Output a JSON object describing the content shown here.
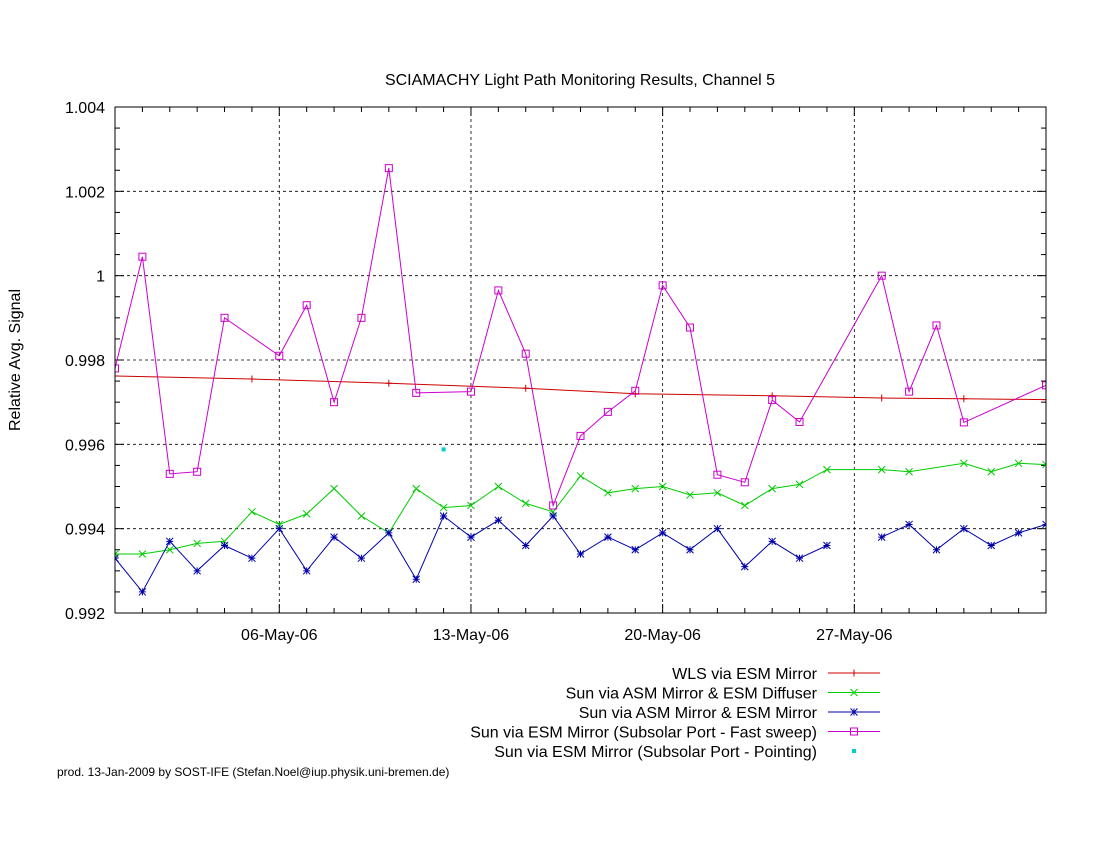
{
  "chart_data": {
    "type": "line",
    "title": "SCIAMACHY Light Path Monitoring Results, Channel 5",
    "xlabel": "",
    "ylabel": "Relative Avg. Signal",
    "x_type": "date",
    "xlim": [
      "2006-04-30",
      "2006-06-03"
    ],
    "ylim": [
      0.992,
      1.004
    ],
    "yticks": [
      0.992,
      0.994,
      0.996,
      0.998,
      1,
      1.002,
      1.004
    ],
    "ytick_labels": [
      "0.992",
      "0.994",
      "0.996",
      "0.998",
      "1",
      "1.002",
      "1.004"
    ],
    "xticks": [
      "2006-05-06",
      "2006-05-13",
      "2006-05-20",
      "2006-05-27"
    ],
    "xtick_labels": [
      "06-May-06",
      "13-May-06",
      "20-May-06",
      "27-May-06"
    ],
    "grid": true,
    "legend_position": "bottom",
    "series": [
      {
        "name": "WLS via ESM Mirror",
        "color": "#cc0000",
        "marker": "plus",
        "points": [
          [
            "2006-04-30",
            0.99762
          ],
          [
            "2006-05-05",
            0.99755
          ],
          [
            "2006-05-10",
            0.99745
          ],
          [
            "2006-05-15",
            0.99733
          ],
          [
            "2006-05-19",
            0.9972
          ],
          [
            "2006-05-24",
            0.99715
          ],
          [
            "2006-05-28",
            0.9971
          ],
          [
            "2006-05-31",
            0.99708
          ],
          [
            "2006-06-03",
            0.99706
          ]
        ]
      },
      {
        "name": "Sun via ASM Mirror & ESM Diffuser",
        "color": "#00cc00",
        "marker": "cross",
        "points": [
          [
            "2006-04-30",
            0.9934
          ],
          [
            "2006-05-01",
            0.9934
          ],
          [
            "2006-05-02",
            0.9935
          ],
          [
            "2006-05-03",
            0.99365
          ],
          [
            "2006-05-04",
            0.9937
          ],
          [
            "2006-05-05",
            0.9944
          ],
          [
            "2006-05-06",
            0.9941
          ],
          [
            "2006-05-07",
            0.99435
          ],
          [
            "2006-05-08",
            0.99495
          ],
          [
            "2006-05-09",
            0.9943
          ],
          [
            "2006-05-10",
            0.9939
          ],
          [
            "2006-05-11",
            0.99495
          ],
          [
            "2006-05-12",
            0.9945
          ],
          [
            "2006-05-13",
            0.99455
          ],
          [
            "2006-05-14",
            0.995
          ],
          [
            "2006-05-15",
            0.9946
          ],
          [
            "2006-05-16",
            0.9944
          ],
          [
            "2006-05-17",
            0.99525
          ],
          [
            "2006-05-18",
            0.99485
          ],
          [
            "2006-05-19",
            0.99495
          ],
          [
            "2006-05-20",
            0.995
          ],
          [
            "2006-05-21",
            0.9948
          ],
          [
            "2006-05-22",
            0.99485
          ],
          [
            "2006-05-23",
            0.99455
          ],
          [
            "2006-05-24",
            0.99495
          ],
          [
            "2006-05-25",
            0.99505
          ],
          [
            "2006-05-26",
            0.9954
          ],
          [
            "2006-05-28",
            0.9954
          ],
          [
            "2006-05-29",
            0.99535
          ],
          [
            "2006-05-31",
            0.99555
          ],
          [
            "2006-06-01",
            0.99535
          ],
          [
            "2006-06-02",
            0.99555
          ],
          [
            "2006-06-03",
            0.99552
          ]
        ]
      },
      {
        "name": "Sun via ASM Mirror & ESM Mirror",
        "color": "#0000aa",
        "marker": "star",
        "segments": [
          [
            [
              "2006-04-30",
              0.9933
            ],
            [
              "2006-05-01",
              0.9925
            ],
            [
              "2006-05-02",
              0.9937
            ],
            [
              "2006-05-03",
              0.993
            ],
            [
              "2006-05-04",
              0.9936
            ],
            [
              "2006-05-05",
              0.9933
            ],
            [
              "2006-05-06",
              0.994
            ],
            [
              "2006-05-07",
              0.993
            ],
            [
              "2006-05-08",
              0.9938
            ],
            [
              "2006-05-09",
              0.9933
            ],
            [
              "2006-05-10",
              0.9939
            ],
            [
              "2006-05-11",
              0.9928
            ],
            [
              "2006-05-12",
              0.9943
            ],
            [
              "2006-05-13",
              0.9938
            ],
            [
              "2006-05-14",
              0.9942
            ],
            [
              "2006-05-15",
              0.9936
            ],
            [
              "2006-05-16",
              0.9943
            ],
            [
              "2006-05-17",
              0.9934
            ],
            [
              "2006-05-18",
              0.9938
            ],
            [
              "2006-05-19",
              0.9935
            ],
            [
              "2006-05-20",
              0.9939
            ],
            [
              "2006-05-21",
              0.9935
            ],
            [
              "2006-05-22",
              0.994
            ],
            [
              "2006-05-23",
              0.9931
            ],
            [
              "2006-05-24",
              0.9937
            ],
            [
              "2006-05-25",
              0.9933
            ],
            [
              "2006-05-26",
              0.9936
            ]
          ],
          [
            [
              "2006-05-28",
              0.9938
            ],
            [
              "2006-05-29",
              0.9941
            ],
            [
              "2006-05-30",
              0.9935
            ],
            [
              "2006-05-31",
              0.994
            ],
            [
              "2006-06-01",
              0.9936
            ],
            [
              "2006-06-02",
              0.9939
            ],
            [
              "2006-06-03",
              0.9941
            ]
          ]
        ]
      },
      {
        "name": "Sun via ESM Mirror (Subsolar Port - Fast sweep)",
        "color": "#cc00cc",
        "marker": "square",
        "points": [
          [
            "2006-04-30",
            0.9978
          ],
          [
            "2006-05-01",
            1.00045
          ],
          [
            "2006-05-02",
            0.9953
          ],
          [
            "2006-05-03",
            0.99535
          ],
          [
            "2006-05-04",
            0.999
          ],
          [
            "2006-05-06",
            0.9981
          ],
          [
            "2006-05-07",
            0.9993
          ],
          [
            "2006-05-08",
            0.997
          ],
          [
            "2006-05-09",
            0.999
          ],
          [
            "2006-05-10",
            1.00255
          ],
          [
            "2006-05-11",
            0.99722
          ],
          [
            "2006-05-13",
            0.99725
          ],
          [
            "2006-05-14",
            0.99965
          ],
          [
            "2006-05-15",
            0.99815
          ],
          [
            "2006-05-16",
            0.99455
          ],
          [
            "2006-05-17",
            0.9962
          ],
          [
            "2006-05-18",
            0.99677
          ],
          [
            "2006-05-19",
            0.99727
          ],
          [
            "2006-05-20",
            0.99977
          ],
          [
            "2006-05-21",
            0.99877
          ],
          [
            "2006-05-22",
            0.99528
          ],
          [
            "2006-05-23",
            0.9951
          ],
          [
            "2006-05-24",
            0.99705
          ],
          [
            "2006-05-25",
            0.99653
          ],
          [
            "2006-05-28",
            1.0
          ],
          [
            "2006-05-29",
            0.99725
          ],
          [
            "2006-05-30",
            0.99882
          ],
          [
            "2006-05-31",
            0.99652
          ],
          [
            "2006-06-03",
            0.9974
          ]
        ]
      },
      {
        "name": "Sun via ESM Mirror (Subsolar Port - Pointing)",
        "color": "#00cccc",
        "marker": "dot",
        "points": [
          [
            "2006-05-12",
            0.99588
          ]
        ]
      }
    ]
  },
  "footer": "prod. 13-Jan-2009 by SOST-IFE (Stefan.Noel@iup.physik.uni-bremen.de)"
}
